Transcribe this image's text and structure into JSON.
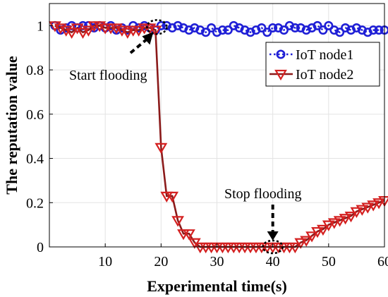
{
  "chart_data": {
    "type": "line",
    "xlabel": "Experimental time(s)",
    "ylabel": "The reputation value",
    "xlim": [
      0,
      60
    ],
    "ylim": [
      0,
      1.1
    ],
    "xticks": [
      "10",
      "20",
      "30",
      "40",
      "50",
      "60"
    ],
    "yticks": [
      "0",
      "0.2",
      "0.4",
      "0.6",
      "0.8",
      "1"
    ],
    "grid": true,
    "legend_position": "top-right",
    "series": [
      {
        "name": "IoT node1",
        "color": "#1f1fd6",
        "line_style": "dotted",
        "marker": "circle",
        "x": [
          1,
          2,
          3,
          4,
          5,
          6,
          7,
          8,
          9,
          10,
          11,
          12,
          13,
          14,
          15,
          16,
          17,
          18,
          19,
          20,
          21,
          22,
          23,
          24,
          25,
          26,
          27,
          28,
          29,
          30,
          31,
          32,
          33,
          34,
          35,
          36,
          37,
          38,
          39,
          40,
          41,
          42,
          43,
          44,
          45,
          46,
          47,
          48,
          49,
          50,
          51,
          52,
          53,
          54,
          55,
          56,
          57,
          58,
          59,
          60
        ],
        "values": [
          1.0,
          0.98,
          0.99,
          1.0,
          0.99,
          1.0,
          1.0,
          0.99,
          1.0,
          0.99,
          1.0,
          0.98,
          0.99,
          0.98,
          1.0,
          0.99,
          1.0,
          0.99,
          0.98,
          1.0,
          1.0,
          0.99,
          1.0,
          0.99,
          0.98,
          0.99,
          0.98,
          0.97,
          0.99,
          0.97,
          0.98,
          0.98,
          1.0,
          0.99,
          0.98,
          0.97,
          0.98,
          0.99,
          0.97,
          0.99,
          0.99,
          0.98,
          1.0,
          0.99,
          0.99,
          0.98,
          0.99,
          1.0,
          0.98,
          1.0,
          0.98,
          0.97,
          0.99,
          0.98,
          0.99,
          0.98,
          0.97,
          0.98,
          0.98,
          0.98
        ]
      },
      {
        "name": "IoT node2",
        "color": "#d42020",
        "line_color": "#8b1a1a",
        "line_style": "solid",
        "marker": "triangle-down",
        "x": [
          1,
          2,
          3,
          4,
          5,
          6,
          7,
          8,
          9,
          10,
          11,
          12,
          13,
          14,
          15,
          16,
          17,
          18,
          19,
          20,
          21,
          22,
          23,
          24,
          25,
          26,
          27,
          28,
          29,
          30,
          31,
          32,
          33,
          34,
          35,
          36,
          37,
          38,
          39,
          40,
          41,
          42,
          43,
          44,
          45,
          46,
          47,
          48,
          49,
          50,
          51,
          52,
          53,
          54,
          55,
          56,
          57,
          58,
          59,
          60
        ],
        "values": [
          1.0,
          0.99,
          0.98,
          0.97,
          0.99,
          0.97,
          0.98,
          1.0,
          1.0,
          0.99,
          0.99,
          0.99,
          0.98,
          0.97,
          0.98,
          0.98,
          0.99,
          0.99,
          0.98,
          0.45,
          0.23,
          0.23,
          0.12,
          0.06,
          0.06,
          0.02,
          0.0,
          0.0,
          0.0,
          0.0,
          0.0,
          0.0,
          0.0,
          0.0,
          0.0,
          0.0,
          0.0,
          0.0,
          0.0,
          0.0,
          0.0,
          0.0,
          0.0,
          0.0,
          0.02,
          0.03,
          0.05,
          0.07,
          0.08,
          0.1,
          0.11,
          0.12,
          0.13,
          0.14,
          0.16,
          0.17,
          0.18,
          0.19,
          0.2,
          0.21
        ]
      }
    ],
    "annotations": [
      {
        "text": "Start flooding",
        "x": 19,
        "y": 1.0
      },
      {
        "text": "Stop flooding",
        "x": 40,
        "y": 0.0
      }
    ]
  }
}
